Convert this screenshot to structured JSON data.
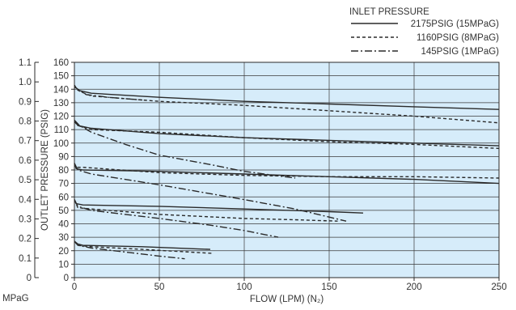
{
  "chart_data": {
    "type": "line",
    "xlabel": "FLOW (LPM) (N₂)",
    "ylabel": "OUTLET PRESSURE (PSIG)",
    "secondary_ylabel": "MPaG",
    "xlim": [
      0,
      250
    ],
    "ylim": [
      0,
      160
    ],
    "x_ticks": [
      "0",
      "50",
      "100",
      "150",
      "200",
      "250"
    ],
    "y_ticks": [
      "0",
      "10",
      "20",
      "30",
      "40",
      "50",
      "60",
      "70",
      "80",
      "90",
      "100",
      "110",
      "120",
      "130",
      "140",
      "150",
      "160"
    ],
    "secondary_y_ticks": [
      "0",
      "0.1",
      "0.2",
      "0.3",
      "0.4",
      "0.5",
      "0.6",
      "0.7",
      "0.8",
      "0.9",
      "1.0",
      "1.1"
    ],
    "grid": true,
    "plot_background": "#d6ecfa",
    "line_color": "#2a2a2a",
    "legend_title": "INLET PRESSURE",
    "legend_position": "top-right",
    "legend": [
      {
        "label": "2175PSIG (15MPaG)",
        "style": "solid"
      },
      {
        "label": "1160PSIG (8MPaG)",
        "style": "dashed"
      },
      {
        "label": "145PSIG (1MPaG)",
        "style": "dash-dot"
      }
    ],
    "series": [
      {
        "style": "solid",
        "points": [
          [
            0,
            143
          ],
          [
            1,
            141
          ],
          [
            3,
            139
          ],
          [
            10,
            137
          ],
          [
            50,
            134
          ],
          [
            100,
            131
          ],
          [
            150,
            129
          ],
          [
            200,
            127
          ],
          [
            250,
            125
          ]
        ]
      },
      {
        "style": "dashed",
        "points": [
          [
            0,
            143
          ],
          [
            1,
            140
          ],
          [
            4,
            138
          ],
          [
            10,
            135
          ],
          [
            50,
            131
          ],
          [
            100,
            128
          ],
          [
            150,
            124
          ],
          [
            200,
            120
          ],
          [
            250,
            115
          ]
        ]
      },
      {
        "style": "dash-dot",
        "points": [
          [
            0,
            143
          ],
          [
            1,
            141
          ],
          [
            3,
            139
          ],
          [
            7,
            136
          ],
          [
            20,
            134
          ],
          [
            40,
            132
          ]
        ]
      },
      {
        "style": "solid",
        "points": [
          [
            0,
            117
          ],
          [
            2,
            113
          ],
          [
            10,
            111
          ],
          [
            50,
            107
          ],
          [
            100,
            104
          ],
          [
            150,
            102
          ],
          [
            200,
            100
          ],
          [
            250,
            98
          ]
        ]
      },
      {
        "style": "dashed",
        "points": [
          [
            0,
            116
          ],
          [
            2,
            113
          ],
          [
            10,
            110
          ],
          [
            50,
            108
          ],
          [
            100,
            104
          ],
          [
            150,
            101
          ],
          [
            200,
            99
          ],
          [
            250,
            96
          ]
        ]
      },
      {
        "style": "dash-dot",
        "points": [
          [
            0,
            117
          ],
          [
            3,
            113
          ],
          [
            10,
            108
          ],
          [
            30,
            99
          ],
          [
            50,
            91
          ],
          [
            80,
            84
          ],
          [
            100,
            79
          ],
          [
            130,
            74
          ]
        ]
      },
      {
        "style": "solid",
        "points": [
          [
            0,
            85
          ],
          [
            1,
            81
          ],
          [
            5,
            80
          ],
          [
            50,
            79
          ],
          [
            100,
            77
          ],
          [
            150,
            75
          ],
          [
            200,
            73
          ],
          [
            250,
            70
          ]
        ]
      },
      {
        "style": "dashed",
        "points": [
          [
            0,
            85
          ],
          [
            1,
            82
          ],
          [
            5,
            82
          ],
          [
            50,
            78
          ],
          [
            100,
            76
          ],
          [
            150,
            75
          ],
          [
            200,
            75
          ],
          [
            250,
            74
          ]
        ]
      },
      {
        "style": "dash-dot",
        "points": [
          [
            0,
            85
          ],
          [
            2,
            80
          ],
          [
            10,
            77
          ],
          [
            50,
            69
          ],
          [
            100,
            58
          ],
          [
            130,
            51
          ],
          [
            160,
            42
          ]
        ]
      },
      {
        "style": "solid",
        "points": [
          [
            0,
            58
          ],
          [
            1,
            55
          ],
          [
            5,
            54
          ],
          [
            50,
            53
          ],
          [
            100,
            51
          ],
          [
            150,
            49
          ],
          [
            170,
            48
          ]
        ]
      },
      {
        "style": "dashed",
        "points": [
          [
            0,
            58
          ],
          [
            2,
            52
          ],
          [
            10,
            51
          ],
          [
            50,
            47
          ],
          [
            100,
            44
          ],
          [
            130,
            43
          ],
          [
            155,
            42
          ]
        ]
      },
      {
        "style": "dash-dot",
        "points": [
          [
            0,
            58
          ],
          [
            2,
            53
          ],
          [
            10,
            50
          ],
          [
            50,
            44
          ],
          [
            80,
            39
          ],
          [
            100,
            35
          ],
          [
            120,
            30
          ]
        ]
      },
      {
        "style": "solid",
        "points": [
          [
            0,
            27
          ],
          [
            2,
            25
          ],
          [
            5,
            24
          ],
          [
            40,
            23
          ],
          [
            80,
            21
          ]
        ]
      },
      {
        "style": "dashed",
        "points": [
          [
            0,
            27
          ],
          [
            2,
            24
          ],
          [
            10,
            23
          ],
          [
            40,
            21
          ],
          [
            82,
            18
          ]
        ]
      },
      {
        "style": "dash-dot",
        "points": [
          [
            0,
            27
          ],
          [
            2,
            24
          ],
          [
            10,
            22
          ],
          [
            30,
            19
          ],
          [
            50,
            16
          ],
          [
            65,
            14
          ]
        ]
      }
    ]
  }
}
